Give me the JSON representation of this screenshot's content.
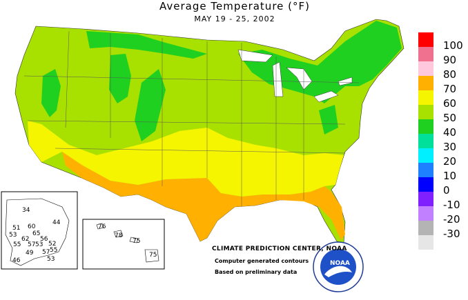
{
  "map": {
    "title": "Average Temperature (°F)",
    "subtitle": "MAY 19 - 25, 2002",
    "credits": {
      "center": "CLIMATE PREDICTION CENTER, NOAA",
      "line1": "Computer generated contours",
      "line2": "Based on preliminary data"
    },
    "logo_text": "NOAA",
    "legend": [
      {
        "label": "100",
        "color": "#ff0000"
      },
      {
        "label": "90",
        "color": "#f0708f"
      },
      {
        "label": "80",
        "color": "#ffc8dc"
      },
      {
        "label": "70",
        "color": "#ffb000"
      },
      {
        "label": "60",
        "color": "#f5f500"
      },
      {
        "label": "50",
        "color": "#a8e000"
      },
      {
        "label": "40",
        "color": "#20d020"
      },
      {
        "label": "30",
        "color": "#00e09a"
      },
      {
        "label": "20",
        "color": "#00f0ff"
      },
      {
        "label": "10",
        "color": "#1e80ff"
      },
      {
        "label": "0",
        "color": "#0000ff"
      },
      {
        "label": "-10",
        "color": "#8020ff"
      },
      {
        "label": "-20",
        "color": "#c080ff"
      },
      {
        "label": "-30",
        "color": "#b4b4b4"
      },
      {
        "label": "",
        "color": "#e6e6e6"
      }
    ],
    "alaska_values": [
      "34",
      "44",
      "51",
      "60",
      "53",
      "65",
      "62",
      "56",
      "55",
      "57",
      "53",
      "52",
      "49",
      "57",
      "55",
      "46",
      "53"
    ],
    "hawaii_values": [
      "76",
      "78",
      "75",
      "75"
    ]
  }
}
